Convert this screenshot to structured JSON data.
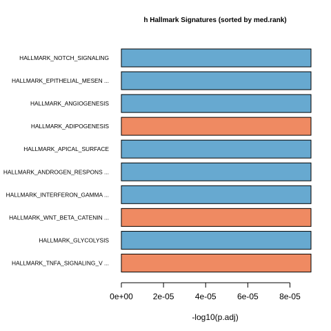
{
  "colors": {
    "blue": "#67a9d0",
    "orange": "#ef8a62",
    "bar_stroke": "#000000",
    "background": "#ffffff"
  },
  "chart_data": {
    "type": "bar",
    "orientation": "horizontal",
    "title": "h Hallmark Signatures (sorted by med.rank)",
    "xlabel": "-log10(p.adj)",
    "ylabel": "",
    "xlim": [
      0,
      9e-05
    ],
    "x_ticks": [
      0,
      2e-05,
      4e-05,
      6e-05,
      8e-05
    ],
    "x_tick_labels": [
      "0e+00",
      "2e-05",
      "4e-05",
      "6e-05",
      "8e-05"
    ],
    "grid": false,
    "categories": [
      "HALLMARK_NOTCH_SIGNALING",
      "HALLMARK_EPITHELIAL_MESEN ...",
      "HALLMARK_ANGIOGENESIS",
      "HALLMARK_ADIPOGENESIS",
      "HALLMARK_APICAL_SURFACE",
      "HALLMARK_ANDROGEN_RESPONS ...",
      "HALLMARK_INTERFERON_GAMMA ...",
      "HALLMARK_WNT_BETA_CATENIN ...",
      "HALLMARK_GLYCOLYSIS",
      "HALLMARK_TNFA_SIGNALING_V ..."
    ],
    "values": [
      9e-05,
      9e-05,
      9e-05,
      9e-05,
      9e-05,
      9e-05,
      9e-05,
      9e-05,
      9e-05,
      9e-05
    ],
    "bar_colors": [
      "blue",
      "blue",
      "blue",
      "orange",
      "blue",
      "blue",
      "blue",
      "orange",
      "blue",
      "orange"
    ]
  }
}
